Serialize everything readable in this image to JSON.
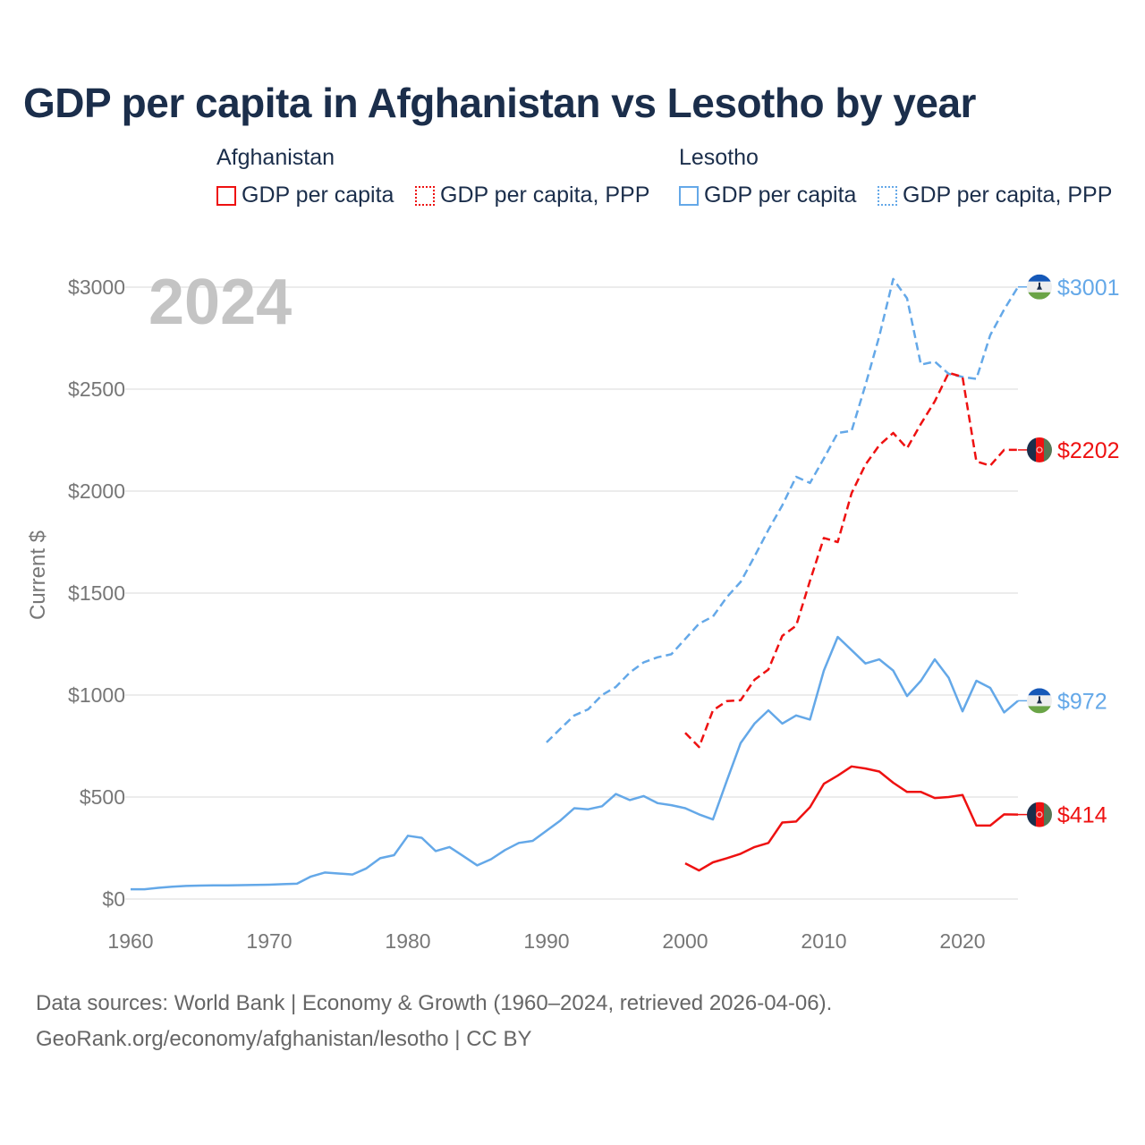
{
  "title": "GDP per capita in Afghanistan vs Lesotho by year",
  "legend": {
    "groups": [
      {
        "name": "Afghanistan",
        "color": "#ee1111",
        "items": [
          "GDP per capita",
          "GDP per capita, PPP"
        ]
      },
      {
        "name": "Lesotho",
        "color": "#64a8e8",
        "items": [
          "GDP per capita",
          "GDP per capita, PPP"
        ]
      }
    ]
  },
  "year_watermark": "2024",
  "footer": {
    "line1": "Data sources: World Bank | Economy & Growth (1960–2024, retrieved 2026-04-06).",
    "line2": "GeoRank.org/economy/afghanistan/lesotho | CC BY"
  },
  "chart_data": {
    "type": "line",
    "title": "GDP per capita in Afghanistan vs Lesotho by year",
    "xlabel": "",
    "ylabel": "Current $",
    "xlim": [
      1960,
      2024
    ],
    "ylim": [
      0,
      3000
    ],
    "x_ticks": [
      1960,
      1970,
      1980,
      1990,
      2000,
      2010,
      2020
    ],
    "y_ticks": [
      0,
      500,
      1000,
      1500,
      2000,
      2500,
      3000
    ],
    "y_tick_labels": [
      "$0",
      "$500",
      "$1000",
      "$1500",
      "$2000",
      "$2500",
      "$3000"
    ],
    "grid": true,
    "legend_position": "top",
    "series": [
      {
        "name": "Lesotho GDP per capita, PPP",
        "country": "Lesotho",
        "color": "#64a8e8",
        "dash": true,
        "end_label": "$3001",
        "flag": "lesotho",
        "start": 1990,
        "values": [
          768,
          835,
          900,
          930,
          1000,
          1040,
          1110,
          1160,
          1185,
          1200,
          1275,
          1350,
          1385,
          1480,
          1555,
          1680,
          1810,
          1930,
          2070,
          2040,
          2160,
          2285,
          2295,
          2520,
          2760,
          3040,
          2945,
          2620,
          2635,
          2575,
          2560,
          2550,
          2765,
          2890,
          3001
        ]
      },
      {
        "name": "Afghanistan GDP per capita, PPP",
        "country": "Afghanistan",
        "color": "#ee1111",
        "dash": true,
        "end_label": "$2202",
        "flag": "afghanistan",
        "start": 2000,
        "values": [
          815,
          745,
          925,
          970,
          975,
          1075,
          1125,
          1290,
          1340,
          1560,
          1770,
          1750,
          1990,
          2130,
          2225,
          2285,
          2210,
          2330,
          2440,
          2580,
          2560,
          2145,
          2125,
          2202,
          2202
        ]
      },
      {
        "name": "Lesotho GDP per capita",
        "country": "Lesotho",
        "color": "#64a8e8",
        "dash": false,
        "end_label": "$972",
        "flag": "lesotho",
        "start": 1960,
        "values": [
          48,
          48,
          55,
          60,
          64,
          66,
          67,
          67,
          68,
          69,
          70,
          73,
          75,
          110,
          130,
          125,
          120,
          150,
          200,
          215,
          310,
          300,
          235,
          255,
          210,
          165,
          195,
          240,
          275,
          285,
          335,
          385,
          445,
          440,
          455,
          515,
          485,
          505,
          470,
          460,
          445,
          415,
          390,
          580,
          765,
          860,
          925,
          860,
          900,
          880,
          1120,
          1285,
          1220,
          1155,
          1175,
          1120,
          995,
          1070,
          1175,
          1085,
          920,
          1070,
          1035,
          915,
          972
        ]
      },
      {
        "name": "Afghanistan GDP per capita",
        "country": "Afghanistan",
        "color": "#ee1111",
        "dash": false,
        "end_label": "$414",
        "flag": "afghanistan",
        "start": 2000,
        "values": [
          175,
          140,
          180,
          200,
          222,
          255,
          275,
          375,
          380,
          450,
          565,
          605,
          650,
          640,
          625,
          570,
          525,
          525,
          495,
          500,
          510,
          360,
          360,
          415,
          414
        ]
      }
    ]
  }
}
